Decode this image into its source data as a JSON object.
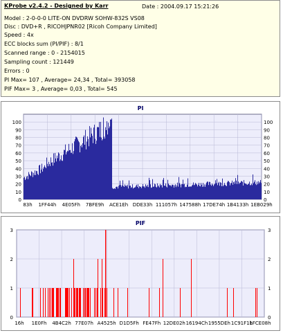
{
  "header": {
    "title": "KProbe v2.4.2 - Designed by Karr",
    "date": "Date : 2004.09.17 15:21:26",
    "lines": [
      "Model : 2-0-0-0 LITE-ON DVDRW SOHW-832S  VS08",
      "Disc : DVD+R , RICOHJPNR02 [Ricoh Company Limited]",
      "Speed : 4x",
      "ECC blocks sum (PI/PIF) : 8/1",
      "Scanned range : 0 - 2154015",
      "Sampling count : 121449",
      "Errors : 0",
      "PI Max= 107 , Average= 24,34 , Total= 393058",
      "PIF Max= 3 , Average= 0,03 , Total= 545"
    ]
  },
  "pi_chart": {
    "title": "PI",
    "bar_color": "#2a2a9e",
    "y_ticks": [
      "100",
      "90",
      "80",
      "70",
      "60",
      "50",
      "40",
      "30",
      "20",
      "10",
      "0"
    ],
    "x_ticks": [
      "83h",
      "1FF44h",
      "4E05Fh",
      "7BFE9h",
      "ACE1Eh",
      "DDE33h",
      "111057h",
      "147588h",
      "17DE74h",
      "1B4133h",
      "1EB029h"
    ]
  },
  "pif_chart": {
    "title": "PIF",
    "bar_color": "#ff0000",
    "y_ticks": [
      "3",
      "2",
      "1",
      "0"
    ],
    "x_ticks": [
      "16h",
      "1E0Fh",
      "4B4C2h",
      "77E07h",
      "A4525h",
      "D1D5Fh",
      "FE47Fh",
      "12DE02h",
      "16194Ch",
      "1955DEh",
      "1C91F1h",
      "1FCE08h"
    ]
  },
  "chart_data": [
    {
      "type": "area",
      "title": "PI",
      "xlabel": "",
      "ylabel": "",
      "ylim": [
        0,
        110
      ],
      "grid": true,
      "x_ticks": [
        "83h",
        "1FF44h",
        "4E05Fh",
        "7BFE9h",
        "ACE1Eh",
        "DDE33h",
        "111057h",
        "147588h",
        "17DE74h",
        "1B4133h",
        "1EB029h"
      ],
      "profile": [
        {
          "segment": "start",
          "x_frac": [
            0.0,
            0.09
          ],
          "y": [
            28,
            42
          ]
        },
        {
          "segment": "ramp",
          "x_frac": [
            0.09,
            0.35
          ],
          "y": [
            45,
            95
          ]
        },
        {
          "segment": "peak",
          "x_frac": [
            0.35,
            0.37
          ],
          "y": [
            107,
            107
          ]
        },
        {
          "segment": "tail",
          "x_frac": [
            0.37,
            1.0
          ],
          "y": [
            16,
            22
          ]
        }
      ]
    },
    {
      "type": "bar",
      "title": "PIF",
      "xlabel": "",
      "ylabel": "",
      "ylim": [
        0,
        3
      ],
      "grid": true,
      "x_ticks": [
        "16h",
        "1E0Fh",
        "4B4C2h",
        "77E07h",
        "A4525h",
        "D1D5Fh",
        "FE47Fh",
        "12DE02h",
        "16194Ch",
        "1955DEh",
        "1C91F1h",
        "1FCE08h"
      ],
      "max_value": 3
    }
  ]
}
